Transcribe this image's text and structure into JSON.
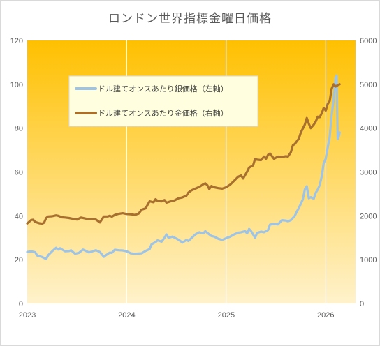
{
  "chart_data": {
    "type": "line",
    "title": "ロンドン世界指標金曜日価格",
    "x_ticks": [
      "2023",
      "2024",
      "2025",
      "2026"
    ],
    "y_left": {
      "min": 0,
      "max": 120,
      "ticks": [
        0,
        20,
        40,
        60,
        80,
        100,
        120
      ]
    },
    "y_right": {
      "min": 0,
      "max": 6000,
      "ticks": [
        0,
        1000,
        2000,
        3000,
        4000,
        5000,
        6000
      ]
    },
    "xlim": [
      2023.0,
      2026.3
    ],
    "grid": "vertical",
    "legend_position": "upper-left-inside",
    "series": [
      {
        "name": "ドル建てオンスあたり銀価格（左軸）",
        "axis": "left",
        "color": "#9DC3E6",
        "points": [
          [
            2023.0,
            23.5
          ],
          [
            2023.04,
            23.8
          ],
          [
            2023.08,
            23.4
          ],
          [
            2023.1,
            21.9
          ],
          [
            2023.15,
            21.2
          ],
          [
            2023.19,
            20.3
          ],
          [
            2023.21,
            22.0
          ],
          [
            2023.25,
            23.8
          ],
          [
            2023.29,
            25.4
          ],
          [
            2023.31,
            24.6
          ],
          [
            2023.33,
            25.2
          ],
          [
            2023.38,
            23.8
          ],
          [
            2023.42,
            23.9
          ],
          [
            2023.44,
            24.3
          ],
          [
            2023.48,
            22.7
          ],
          [
            2023.52,
            23.1
          ],
          [
            2023.56,
            24.6
          ],
          [
            2023.58,
            24.2
          ],
          [
            2023.62,
            23.3
          ],
          [
            2023.65,
            23.7
          ],
          [
            2023.69,
            24.3
          ],
          [
            2023.73,
            23.5
          ],
          [
            2023.75,
            22.4
          ],
          [
            2023.77,
            21.3
          ],
          [
            2023.79,
            22.0
          ],
          [
            2023.83,
            23.2
          ],
          [
            2023.85,
            23.1
          ],
          [
            2023.88,
            24.5
          ],
          [
            2023.92,
            24.3
          ],
          [
            2023.96,
            24.2
          ],
          [
            2024.0,
            23.8
          ],
          [
            2024.04,
            22.9
          ],
          [
            2024.08,
            22.7
          ],
          [
            2024.12,
            22.8
          ],
          [
            2024.15,
            22.9
          ],
          [
            2024.19,
            24.0
          ],
          [
            2024.23,
            24.8
          ],
          [
            2024.25,
            27.0
          ],
          [
            2024.29,
            28.0
          ],
          [
            2024.31,
            28.8
          ],
          [
            2024.35,
            28.2
          ],
          [
            2024.38,
            30.0
          ],
          [
            2024.4,
            31.5
          ],
          [
            2024.42,
            30.0
          ],
          [
            2024.46,
            30.5
          ],
          [
            2024.5,
            29.6
          ],
          [
            2024.52,
            29.1
          ],
          [
            2024.56,
            27.8
          ],
          [
            2024.6,
            29.0
          ],
          [
            2024.62,
            28.5
          ],
          [
            2024.65,
            29.8
          ],
          [
            2024.69,
            31.5
          ],
          [
            2024.73,
            32.5
          ],
          [
            2024.77,
            32.0
          ],
          [
            2024.79,
            33.0
          ],
          [
            2024.83,
            31.5
          ],
          [
            2024.85,
            30.8
          ],
          [
            2024.88,
            30.5
          ],
          [
            2024.92,
            29.5
          ],
          [
            2024.96,
            29.0
          ],
          [
            2025.0,
            29.8
          ],
          [
            2025.04,
            30.5
          ],
          [
            2025.08,
            31.5
          ],
          [
            2025.12,
            32.3
          ],
          [
            2025.15,
            32.5
          ],
          [
            2025.19,
            33.0
          ],
          [
            2025.21,
            32.0
          ],
          [
            2025.23,
            34.0
          ],
          [
            2025.25,
            33.0
          ],
          [
            2025.29,
            30.0
          ],
          [
            2025.31,
            32.2
          ],
          [
            2025.35,
            32.8
          ],
          [
            2025.38,
            32.5
          ],
          [
            2025.42,
            33.5
          ],
          [
            2025.44,
            36.0
          ],
          [
            2025.48,
            36.3
          ],
          [
            2025.52,
            36.1
          ],
          [
            2025.56,
            38.0
          ],
          [
            2025.6,
            37.8
          ],
          [
            2025.62,
            37.5
          ],
          [
            2025.65,
            38.0
          ],
          [
            2025.69,
            40.0
          ],
          [
            2025.71,
            42.0
          ],
          [
            2025.73,
            43.5
          ],
          [
            2025.77,
            47.5
          ],
          [
            2025.79,
            52.0
          ],
          [
            2025.81,
            53.5
          ],
          [
            2025.83,
            48.0
          ],
          [
            2025.85,
            48.5
          ],
          [
            2025.88,
            47.8
          ],
          [
            2025.9,
            50.5
          ],
          [
            2025.92,
            52.0
          ],
          [
            2025.94,
            54.0
          ],
          [
            2025.96,
            58.0
          ],
          [
            2025.98,
            64.0
          ],
          [
            2026.0,
            66.0
          ],
          [
            2026.02,
            71.0
          ],
          [
            2026.04,
            76.0
          ],
          [
            2026.06,
            86.0
          ],
          [
            2026.08,
            93.0
          ],
          [
            2026.1,
            103.0
          ],
          [
            2026.11,
            104.0
          ],
          [
            2026.12,
            75.0
          ],
          [
            2026.13,
            76.0
          ],
          [
            2026.14,
            78.0
          ]
        ]
      },
      {
        "name": "ドル建てオンスあたり金価格（右軸）",
        "axis": "right",
        "color": "#A8702F",
        "points": [
          [
            2023.0,
            1825
          ],
          [
            2023.04,
            1905
          ],
          [
            2023.06,
            1910
          ],
          [
            2023.08,
            1860
          ],
          [
            2023.12,
            1830
          ],
          [
            2023.15,
            1820
          ],
          [
            2023.17,
            1845
          ],
          [
            2023.19,
            1950
          ],
          [
            2023.21,
            1985
          ],
          [
            2023.25,
            1990
          ],
          [
            2023.29,
            2010
          ],
          [
            2023.31,
            2000
          ],
          [
            2023.35,
            1965
          ],
          [
            2023.38,
            1960
          ],
          [
            2023.42,
            1950
          ],
          [
            2023.46,
            1930
          ],
          [
            2023.5,
            1915
          ],
          [
            2023.54,
            1960
          ],
          [
            2023.58,
            1940
          ],
          [
            2023.62,
            1920
          ],
          [
            2023.65,
            1930
          ],
          [
            2023.69,
            1915
          ],
          [
            2023.73,
            1850
          ],
          [
            2023.77,
            1985
          ],
          [
            2023.81,
            1985
          ],
          [
            2023.83,
            2000
          ],
          [
            2023.85,
            1980
          ],
          [
            2023.88,
            2020
          ],
          [
            2023.92,
            2045
          ],
          [
            2023.96,
            2060
          ],
          [
            2024.0,
            2040
          ],
          [
            2024.04,
            2035
          ],
          [
            2024.08,
            2020
          ],
          [
            2024.12,
            2050
          ],
          [
            2024.15,
            2140
          ],
          [
            2024.19,
            2170
          ],
          [
            2024.21,
            2250
          ],
          [
            2024.23,
            2330
          ],
          [
            2024.27,
            2310
          ],
          [
            2024.29,
            2380
          ],
          [
            2024.31,
            2340
          ],
          [
            2024.35,
            2330
          ],
          [
            2024.38,
            2360
          ],
          [
            2024.4,
            2300
          ],
          [
            2024.44,
            2330
          ],
          [
            2024.48,
            2350
          ],
          [
            2024.52,
            2400
          ],
          [
            2024.56,
            2420
          ],
          [
            2024.6,
            2460
          ],
          [
            2024.62,
            2530
          ],
          [
            2024.65,
            2580
          ],
          [
            2024.69,
            2620
          ],
          [
            2024.73,
            2660
          ],
          [
            2024.77,
            2720
          ],
          [
            2024.79,
            2740
          ],
          [
            2024.81,
            2700
          ],
          [
            2024.83,
            2610
          ],
          [
            2024.85,
            2680
          ],
          [
            2024.88,
            2650
          ],
          [
            2024.92,
            2630
          ],
          [
            2024.96,
            2620
          ],
          [
            2025.0,
            2650
          ],
          [
            2025.04,
            2710
          ],
          [
            2025.08,
            2800
          ],
          [
            2025.12,
            2890
          ],
          [
            2025.15,
            2920
          ],
          [
            2025.17,
            2850
          ],
          [
            2025.21,
            3010
          ],
          [
            2025.23,
            3100
          ],
          [
            2025.27,
            3150
          ],
          [
            2025.29,
            3300
          ],
          [
            2025.31,
            3280
          ],
          [
            2025.35,
            3270
          ],
          [
            2025.38,
            3350
          ],
          [
            2025.4,
            3300
          ],
          [
            2025.42,
            3390
          ],
          [
            2025.44,
            3420
          ],
          [
            2025.48,
            3300
          ],
          [
            2025.52,
            3350
          ],
          [
            2025.56,
            3340
          ],
          [
            2025.6,
            3360
          ],
          [
            2025.62,
            3350
          ],
          [
            2025.65,
            3450
          ],
          [
            2025.67,
            3610
          ],
          [
            2025.69,
            3640
          ],
          [
            2025.73,
            3760
          ],
          [
            2025.75,
            3900
          ],
          [
            2025.79,
            4080
          ],
          [
            2025.81,
            4230
          ],
          [
            2025.83,
            4100
          ],
          [
            2025.85,
            4000
          ],
          [
            2025.88,
            4080
          ],
          [
            2025.9,
            4150
          ],
          [
            2025.92,
            4260
          ],
          [
            2025.94,
            4250
          ],
          [
            2025.96,
            4340
          ],
          [
            2025.98,
            4460
          ],
          [
            2026.0,
            4400
          ],
          [
            2026.02,
            4550
          ],
          [
            2026.04,
            4620
          ],
          [
            2026.06,
            4900
          ],
          [
            2026.08,
            5000
          ],
          [
            2026.1,
            4950
          ],
          [
            2026.12,
            4980
          ],
          [
            2026.14,
            5000
          ]
        ]
      }
    ]
  },
  "colors": {
    "plot_top": "#FFC000",
    "plot_bottom": "#FFF2CC",
    "grid": "#ffffff",
    "legend_bg": "#FFFFE0"
  }
}
